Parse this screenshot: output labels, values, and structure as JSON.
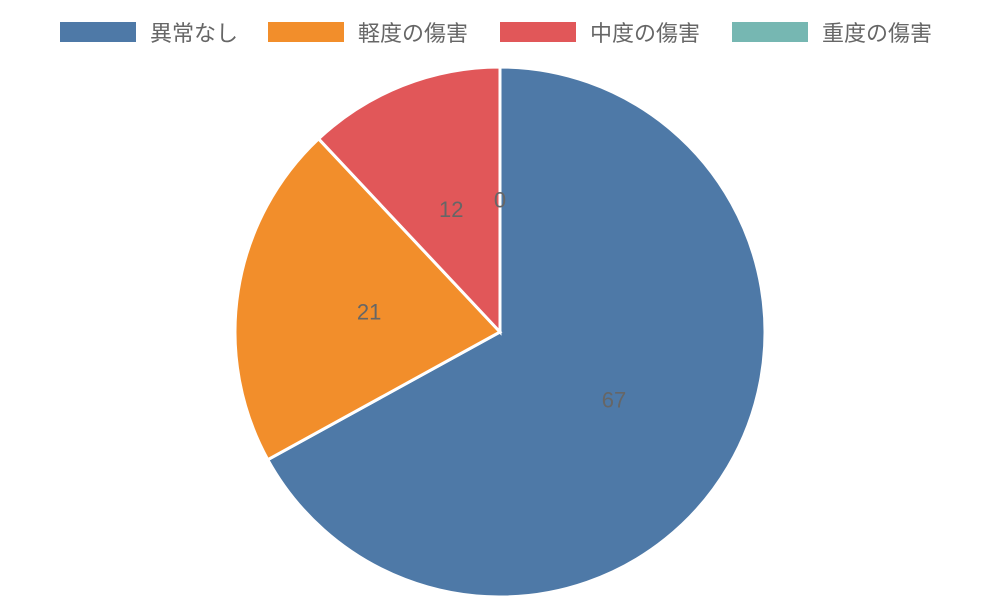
{
  "chart_data": {
    "type": "pie",
    "categories": [
      "異常なし",
      "軽度の傷害",
      "中度の傷害",
      "重度の傷害"
    ],
    "values": [
      67,
      21,
      12,
      0
    ],
    "colors": [
      "#4e79a7",
      "#f28e2b",
      "#e15759",
      "#76b7b2"
    ],
    "data_labels": [
      "67",
      "21",
      "12",
      "0"
    ],
    "legend_position": "top",
    "start_angle": "top, clockwise"
  }
}
